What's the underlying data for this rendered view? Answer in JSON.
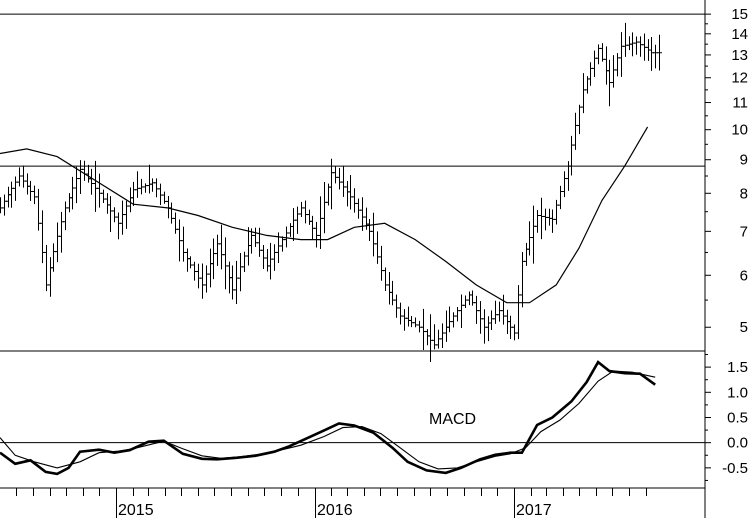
{
  "chart_data": [
    {
      "type": "bar",
      "subtype": "ohlc-weekly-with-moving-average",
      "scale": "log",
      "grid": false,
      "ylim": [
        4.6,
        15.3
      ],
      "y_ticks": [
        5,
        6,
        7,
        8,
        9,
        10,
        11,
        12,
        13,
        14,
        15
      ],
      "x_ticks": [
        "2015",
        "2016",
        "2017"
      ],
      "x_range": [
        "2014-06-02",
        "2017-09-25"
      ],
      "reference_lines": [
        8.8,
        15.0
      ],
      "price_path": [
        [
          "2014-06-02",
          7.6
        ],
        [
          "2014-07-07",
          8.5
        ],
        [
          "2014-08-04",
          7.9
        ],
        [
          "2014-08-25",
          5.8
        ],
        [
          "2014-09-29",
          7.6
        ],
        [
          "2014-10-27",
          8.7
        ],
        [
          "2014-12-01",
          8.0
        ],
        [
          "2015-01-05",
          7.2
        ],
        [
          "2015-02-02",
          8.1
        ],
        [
          "2015-03-09",
          8.3
        ],
        [
          "2015-04-06",
          7.6
        ],
        [
          "2015-05-04",
          6.5
        ],
        [
          "2015-06-08",
          5.8
        ],
        [
          "2015-07-06",
          6.7
        ],
        [
          "2015-08-03",
          5.7
        ],
        [
          "2015-09-07",
          6.9
        ],
        [
          "2015-10-05",
          6.2
        ],
        [
          "2015-11-02",
          6.8
        ],
        [
          "2015-12-07",
          7.6
        ],
        [
          "2016-01-04",
          6.9
        ],
        [
          "2016-02-01",
          8.6
        ],
        [
          "2016-03-07",
          7.9
        ],
        [
          "2016-04-11",
          7.0
        ],
        [
          "2016-05-09",
          5.8
        ],
        [
          "2016-06-06",
          5.2
        ],
        [
          "2016-07-11",
          5.0
        ],
        [
          "2016-08-08",
          4.7
        ],
        [
          "2016-09-05",
          5.1
        ],
        [
          "2016-10-10",
          5.6
        ],
        [
          "2016-11-07",
          5.0
        ],
        [
          "2016-12-05",
          5.3
        ],
        [
          "2017-01-02",
          4.9
        ],
        [
          "2017-01-16",
          6.3
        ],
        [
          "2017-02-13",
          7.4
        ],
        [
          "2017-03-13",
          7.3
        ],
        [
          "2017-04-10",
          8.8
        ],
        [
          "2017-05-08",
          11.5
        ],
        [
          "2017-06-05",
          13.3
        ],
        [
          "2017-06-26",
          11.8
        ],
        [
          "2017-07-17",
          13.4
        ],
        [
          "2017-08-14",
          13.6
        ],
        [
          "2017-09-11",
          13.1
        ]
      ],
      "moving_average": [
        [
          "2014-06-02",
          9.2
        ],
        [
          "2014-07-21",
          9.35
        ],
        [
          "2014-09-15",
          9.1
        ],
        [
          "2014-12-01",
          8.3
        ],
        [
          "2015-02-02",
          7.7
        ],
        [
          "2015-04-06",
          7.6
        ],
        [
          "2015-06-01",
          7.4
        ],
        [
          "2015-08-03",
          7.1
        ],
        [
          "2015-10-05",
          6.9
        ],
        [
          "2015-12-07",
          6.8
        ],
        [
          "2016-01-25",
          6.8
        ],
        [
          "2016-03-14",
          7.1
        ],
        [
          "2016-05-09",
          7.2
        ],
        [
          "2016-07-04",
          6.8
        ],
        [
          "2016-08-29",
          6.3
        ],
        [
          "2016-10-24",
          5.8
        ],
        [
          "2016-12-19",
          5.45
        ],
        [
          "2017-01-30",
          5.45
        ],
        [
          "2017-03-20",
          5.8
        ],
        [
          "2017-05-01",
          6.6
        ],
        [
          "2017-06-12",
          7.8
        ],
        [
          "2017-07-24",
          8.8
        ],
        [
          "2017-09-04",
          10.1
        ]
      ]
    },
    {
      "type": "line",
      "title": "MACD",
      "ylim": [
        -0.9,
        1.82
      ],
      "y_ticks": [
        -0.5,
        0.0,
        0.5,
        1.0,
        1.5
      ],
      "y_tick_labels": [
        "-0.5",
        "0.0",
        "0.5",
        "1.0",
        "1.5"
      ],
      "zero_line": 0.0,
      "series": [
        {
          "values": [
            [
              "2014-06-02",
              -0.2
            ],
            [
              "2014-06-30",
              -0.42
            ],
            [
              "2014-07-28",
              -0.35
            ],
            [
              "2014-08-25",
              -0.58
            ],
            [
              "2014-09-15",
              -0.62
            ],
            [
              "2014-10-06",
              -0.5
            ],
            [
              "2014-10-27",
              -0.18
            ],
            [
              "2014-12-01",
              -0.14
            ],
            [
              "2014-12-29",
              -0.2
            ],
            [
              "2015-01-26",
              -0.15
            ],
            [
              "2015-03-02",
              0.02
            ],
            [
              "2015-03-30",
              0.04
            ],
            [
              "2015-05-04",
              -0.22
            ],
            [
              "2015-06-08",
              -0.32
            ],
            [
              "2015-07-06",
              -0.33
            ],
            [
              "2015-08-10",
              -0.3
            ],
            [
              "2015-09-14",
              -0.26
            ],
            [
              "2015-10-19",
              -0.18
            ],
            [
              "2015-11-16",
              -0.07
            ],
            [
              "2015-12-21",
              0.1
            ],
            [
              "2016-01-18",
              0.24
            ],
            [
              "2016-02-15",
              0.38
            ],
            [
              "2016-03-14",
              0.34
            ],
            [
              "2016-04-18",
              0.2
            ],
            [
              "2016-05-23",
              -0.1
            ],
            [
              "2016-06-20",
              -0.38
            ],
            [
              "2016-07-25",
              -0.55
            ],
            [
              "2016-08-29",
              -0.6
            ],
            [
              "2016-09-26",
              -0.5
            ],
            [
              "2016-10-31",
              -0.33
            ],
            [
              "2016-11-28",
              -0.24
            ],
            [
              "2016-12-26",
              -0.2
            ],
            [
              "2017-01-16",
              -0.2
            ],
            [
              "2017-02-13",
              0.35
            ],
            [
              "2017-03-13",
              0.5
            ],
            [
              "2017-04-17",
              0.82
            ],
            [
              "2017-05-15",
              1.2
            ],
            [
              "2017-06-05",
              1.6
            ],
            [
              "2017-06-26",
              1.42
            ],
            [
              "2017-07-24",
              1.38
            ],
            [
              "2017-08-21",
              1.37
            ],
            [
              "2017-09-18",
              1.15
            ]
          ]
        },
        {
          "values": [
            [
              "2014-06-02",
              0.1
            ],
            [
              "2014-06-30",
              -0.25
            ],
            [
              "2014-08-04",
              -0.38
            ],
            [
              "2014-09-15",
              -0.5
            ],
            [
              "2014-10-27",
              -0.38
            ],
            [
              "2014-12-01",
              -0.2
            ],
            [
              "2015-01-05",
              -0.17
            ],
            [
              "2015-02-02",
              -0.12
            ],
            [
              "2015-03-30",
              0.03
            ],
            [
              "2015-05-04",
              -0.12
            ],
            [
              "2015-06-08",
              -0.26
            ],
            [
              "2015-07-13",
              -0.31
            ],
            [
              "2015-08-17",
              -0.28
            ],
            [
              "2015-09-21",
              -0.23
            ],
            [
              "2015-10-26",
              -0.16
            ],
            [
              "2015-12-07",
              -0.05
            ],
            [
              "2016-01-18",
              0.12
            ],
            [
              "2016-02-22",
              0.3
            ],
            [
              "2016-03-28",
              0.32
            ],
            [
              "2016-05-02",
              0.18
            ],
            [
              "2016-06-06",
              -0.1
            ],
            [
              "2016-07-11",
              -0.38
            ],
            [
              "2016-08-15",
              -0.52
            ],
            [
              "2016-09-19",
              -0.5
            ],
            [
              "2016-10-24",
              -0.38
            ],
            [
              "2016-11-28",
              -0.27
            ],
            [
              "2016-12-26",
              -0.22
            ],
            [
              "2017-01-23",
              -0.1
            ],
            [
              "2017-02-20",
              0.22
            ],
            [
              "2017-03-27",
              0.45
            ],
            [
              "2017-05-01",
              0.78
            ],
            [
              "2017-06-05",
              1.22
            ],
            [
              "2017-07-03",
              1.42
            ],
            [
              "2017-08-07",
              1.4
            ],
            [
              "2017-09-18",
              1.3
            ]
          ]
        }
      ]
    }
  ]
}
